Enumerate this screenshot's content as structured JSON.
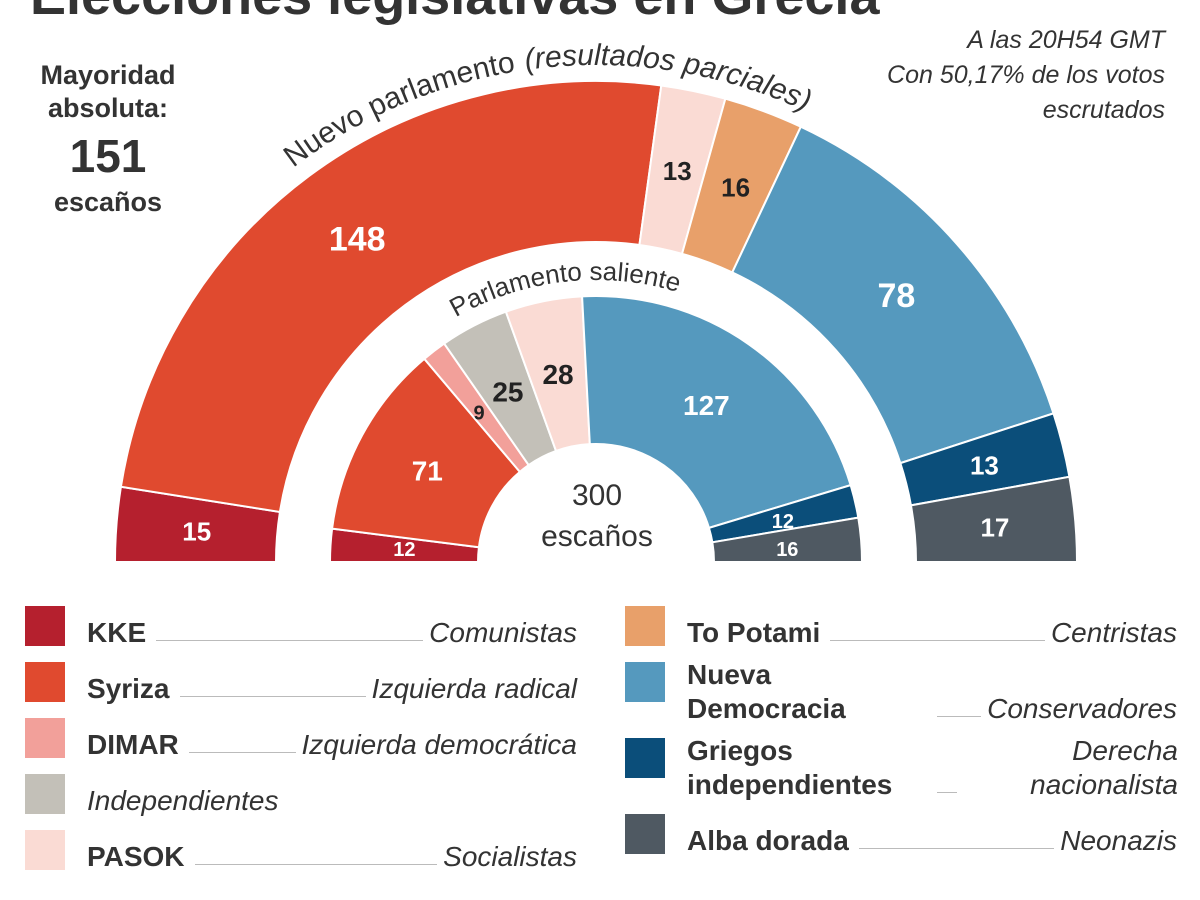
{
  "title": "Elecciones legislativas en Grecia",
  "note": [
    "A las 20H54 GMT",
    "Con 50,17% de los votos",
    "escrutados"
  ],
  "majority": [
    "Mayoridad",
    "absoluta:",
    "151",
    "escaños"
  ],
  "total": [
    "300",
    "escaños"
  ],
  "legend": [
    {
      "name": "KKE",
      "description": "Comunistas",
      "color": "#b5202e"
    },
    {
      "name": "Syriza",
      "description": "Izquierda radical",
      "color": "#e04a2f"
    },
    {
      "name": "DIMAR",
      "description": "Izquierda democrática",
      "color": "#f2a09a"
    },
    {
      "name": "Independientes",
      "color": "#c3c0b8"
    },
    {
      "name": "PASOK",
      "description": "Socialistas",
      "color": "#fadbd4"
    },
    {
      "name": "To Potami",
      "description": "Centristas",
      "color": "#e8a06a"
    },
    {
      "name": "Nueva Democracia",
      "description": "Conservadores",
      "color": "#5599be"
    },
    {
      "name": "Griegos independientes",
      "description": "Derecha nacionalista",
      "color": "#0b4e7a"
    },
    {
      "name": "Alba dorada",
      "description": "Neonazis",
      "color": "#4f5962"
    }
  ],
  "chart_data": [
    {
      "type": "pie",
      "title": "Nuevo parlamento",
      "subtitle": "(resultados parciales)",
      "categories": [
        "KKE",
        "Syriza",
        "PASOK",
        "To Potami",
        "Nueva Democracia",
        "Griegos independientes",
        "Alba dorada"
      ],
      "values": [
        15,
        148,
        13,
        16,
        78,
        13,
        17
      ]
    },
    {
      "type": "pie",
      "title": "Parlamento saliente",
      "categories": [
        "KKE",
        "Syriza",
        "DIMAR",
        "Independientes",
        "PASOK",
        "Nueva Democracia",
        "Griegos independientes",
        "Alba dorada"
      ],
      "values": [
        12,
        71,
        9,
        25,
        28,
        127,
        12,
        16
      ]
    }
  ]
}
